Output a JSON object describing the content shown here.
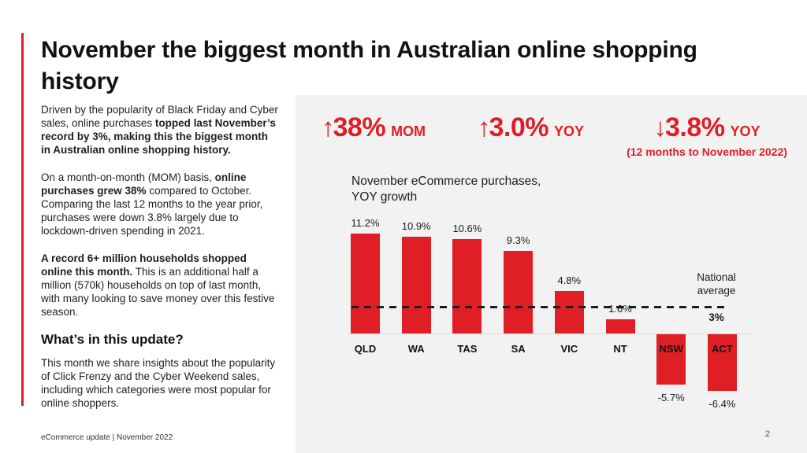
{
  "slide": {
    "title": "November the biggest month in Australian online shopping history",
    "footer": "eCommerce update | November 2022",
    "page_number": "2"
  },
  "left_column": {
    "paragraphs": [
      {
        "segments": [
          {
            "text": "Driven by the popularity of Black Friday and Cyber sales, online purchases ",
            "bold": false
          },
          {
            "text": "topped last November’s record by 3%, making this the biggest month in Australian online shopping history.",
            "bold": true
          }
        ]
      },
      {
        "segments": [
          {
            "text": "On a month-on-month (MOM) basis, ",
            "bold": false
          },
          {
            "text": "online purchases grew 38%",
            "bold": true
          },
          {
            "text": " compared to October. Comparing the last 12 months to the year prior, purchases were down 3.8% largely due to lockdown-driven spending in 2021.",
            "bold": false
          }
        ]
      },
      {
        "segments": [
          {
            "text": "A record 6+ million households shopped online this month.",
            "bold": true
          },
          {
            "text": " This is an additional half a million (570k) households on top of last month, with many looking to save money over this festive season.",
            "bold": false
          }
        ]
      }
    ],
    "subheading": "What’s in this update?",
    "closing_paragraph": "This month we share insights about the popularity of Click Frenzy and the Cyber Weekend sales, including which categories were most popular for online shoppers."
  },
  "stats": [
    {
      "direction": "up",
      "arrow": "↑",
      "value": "38%",
      "suffix": "MOM",
      "caption": ""
    },
    {
      "direction": "up",
      "arrow": "↑",
      "value": "3.0%",
      "suffix": "YOY",
      "caption": ""
    },
    {
      "direction": "down",
      "arrow": "↓",
      "value": "3.8%",
      "suffix": "YOY",
      "caption": "(12 months to November 2022)"
    }
  ],
  "chart_data": {
    "type": "bar",
    "title": "November eCommerce purchases,\nYOY growth",
    "categories": [
      "QLD",
      "WA",
      "TAS",
      "SA",
      "VIC",
      "NT",
      "NSW",
      "ACT"
    ],
    "values": [
      11.2,
      10.9,
      10.6,
      9.3,
      4.8,
      1.6,
      -5.7,
      -6.4
    ],
    "value_labels": [
      "11.2%",
      "10.9%",
      "10.6%",
      "9.3%",
      "4.8%",
      "1.6%",
      "-5.7%",
      "-6.4%"
    ],
    "unit": "%",
    "bar_color": "#E01E26",
    "reference_line": {
      "value": 3,
      "label": "National\naverage",
      "value_label": "3%"
    },
    "ylim": [
      -8,
      13
    ],
    "grid": false,
    "legend": false,
    "xlabel": "",
    "ylabel": ""
  },
  "colors": {
    "accent_red": "#E01E26",
    "panel_bg": "#F2F2F2",
    "text": "#1C1C1E"
  }
}
